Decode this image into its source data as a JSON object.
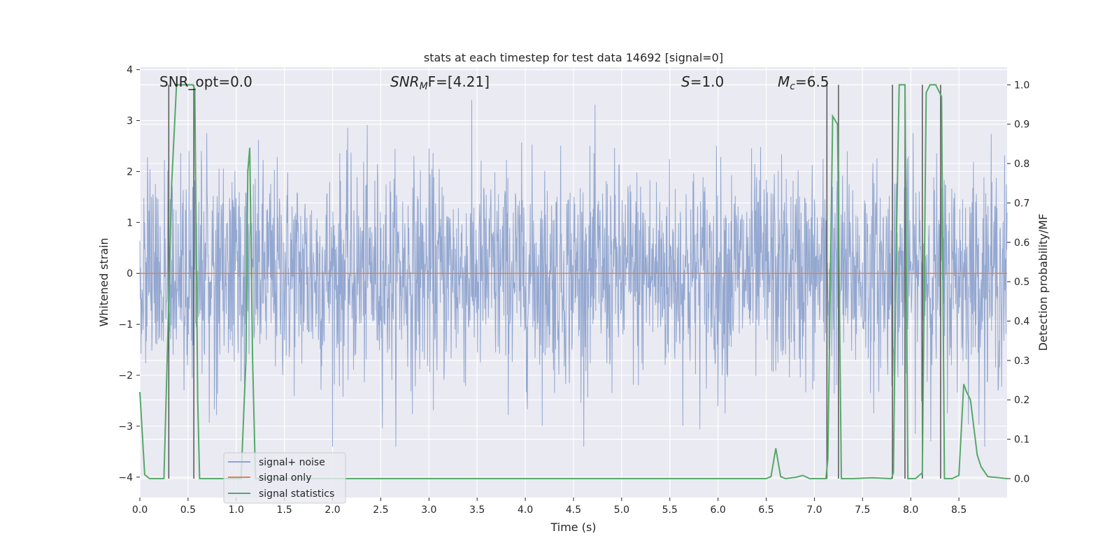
{
  "chart_data": {
    "type": "line",
    "title": "stats at each timestep for test data 14692 [signal=0]",
    "xlabel": "Time (s)",
    "ylabel": "Whitened strain",
    "y2label": "Detection probability/MF",
    "xlim": [
      0,
      9.0
    ],
    "ylim": [
      -4.4,
      4.05
    ],
    "y2lim": [
      -0.048,
      1.045
    ],
    "xticks": [
      "0.0",
      "0.5",
      "1.0",
      "1.5",
      "2.0",
      "2.5",
      "3.0",
      "3.5",
      "4.0",
      "4.5",
      "5.0",
      "5.5",
      "6.0",
      "6.5",
      "7.0",
      "7.5",
      "8.0",
      "8.5"
    ],
    "yticks": [
      "4",
      "3",
      "2",
      "1",
      "0",
      "−1",
      "−2",
      "−3",
      "−4"
    ],
    "y2ticks": [
      "1.0",
      "0.9",
      "0.8",
      "0.7",
      "0.6",
      "0.5",
      "0.4",
      "0.3",
      "0.2",
      "0.1",
      "0.0"
    ],
    "grid": true,
    "legend_position": "lower-left",
    "annotations": {
      "snr_opt": "SNR_opt=0.0",
      "snr_mf_italic": "SNR",
      "snr_mf_sub": "M",
      "snr_mf_rest": "F=[4.21]",
      "s_italic": "S",
      "s_rest": "=1.0",
      "mc_italic": "M",
      "mc_sub": "c",
      "mc_rest": "=6.5"
    },
    "series": [
      {
        "name": "signal+ noise",
        "color": "#8ea3cd",
        "axis": "left",
        "description": "whitened noise, amplitude roughly within ±2.5 with peaks up to ±3.5"
      },
      {
        "name": "signal only",
        "color": "#dd8452",
        "axis": "left",
        "x": [
          0,
          9.0
        ],
        "y": [
          0,
          0
        ]
      },
      {
        "name": "signal statistics",
        "color": "#55a868",
        "axis": "right",
        "x": [
          0.0,
          0.05,
          0.1,
          0.2,
          0.25,
          0.3,
          0.33,
          0.38,
          0.42,
          0.5,
          0.55,
          0.57,
          0.6,
          0.62,
          0.7,
          0.8,
          1.0,
          1.05,
          1.1,
          1.12,
          1.14,
          1.17,
          1.2,
          1.3,
          2.0,
          3.0,
          4.0,
          5.0,
          6.0,
          6.5,
          6.55,
          6.6,
          6.65,
          6.7,
          6.8,
          6.88,
          6.95,
          7.0,
          7.12,
          7.14,
          7.19,
          7.24,
          7.28,
          7.4,
          7.6,
          7.8,
          7.82,
          7.85,
          7.88,
          7.94,
          7.97,
          8.05,
          8.12,
          8.16,
          8.2,
          8.26,
          8.32,
          8.35,
          8.43,
          8.5,
          8.55,
          8.58,
          8.62,
          8.69,
          8.73,
          8.8,
          9.0
        ],
        "y": [
          0.22,
          0.01,
          0.0,
          0.0,
          0.0,
          0.45,
          0.75,
          1.0,
          1.0,
          1.0,
          1.0,
          0.99,
          0.2,
          0.0,
          0.0,
          0.0,
          0.0,
          0.0,
          0.3,
          0.78,
          0.84,
          0.3,
          0.0,
          0.0,
          0.0,
          0.0,
          0.0,
          0.0,
          0.0,
          0.0,
          0.005,
          0.077,
          0.005,
          0.0,
          0.003,
          0.008,
          0.0,
          0.0,
          0.0,
          0.05,
          0.92,
          0.9,
          0.0,
          0.0,
          0.002,
          0.0,
          0.015,
          0.6,
          1.0,
          1.0,
          0.0,
          0.0,
          0.015,
          0.98,
          1.0,
          1.0,
          0.97,
          0.0,
          0.0,
          0.008,
          0.24,
          0.22,
          0.2,
          0.06,
          0.03,
          0.005,
          0.0
        ]
      }
    ],
    "vertical_markers_right": [
      {
        "x": 0.3,
        "y1": 0.0,
        "y2": 1.0
      },
      {
        "x": 0.56,
        "y1": 0.0,
        "y2": 1.0
      },
      {
        "x": 7.13,
        "y1": 0.0,
        "y2": 1.0
      },
      {
        "x": 7.25,
        "y1": 0.0,
        "y2": 1.0
      },
      {
        "x": 7.81,
        "y1": 0.0,
        "y2": 1.0
      },
      {
        "x": 7.94,
        "y1": 0.0,
        "y2": 1.0
      },
      {
        "x": 8.12,
        "y1": 0.0,
        "y2": 1.0
      },
      {
        "x": 8.31,
        "y1": 0.0,
        "y2": 1.0
      }
    ]
  }
}
